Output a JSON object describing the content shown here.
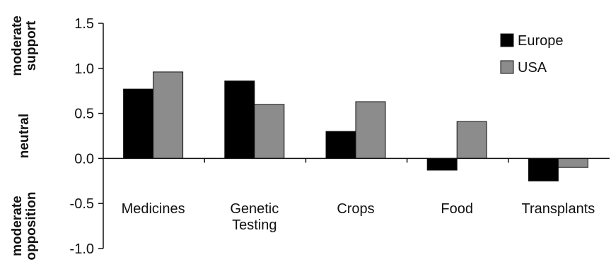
{
  "chart_data": {
    "type": "bar",
    "categories": [
      "Medicines",
      "Genetic\nTesting",
      "Crops",
      "Food",
      "Transplants"
    ],
    "series": [
      {
        "name": "Europe",
        "values": [
          0.77,
          0.86,
          0.3,
          -0.13,
          -0.25
        ],
        "color": "#000000"
      },
      {
        "name": "USA",
        "values": [
          0.96,
          0.6,
          0.63,
          0.41,
          -0.1
        ],
        "color": "#8c8c8c"
      }
    ],
    "ylim": [
      -1.0,
      1.5
    ],
    "yticks": [
      "1.5",
      "1.0",
      "0.5",
      "0.0",
      "-0.5",
      "-1.0"
    ],
    "ytick_values": [
      1.5,
      1.0,
      0.5,
      0.0,
      -0.5,
      -1.0
    ],
    "y_band_labels": [
      {
        "text": [
          "moderate",
          "support"
        ],
        "at": 1.25
      },
      {
        "text": [
          "neutral"
        ],
        "at": 0.25
      },
      {
        "text": [
          "moderate",
          "opposition"
        ],
        "at": -0.75
      }
    ],
    "legend_position": "top-right",
    "grid": false,
    "title": "",
    "xlabel": "",
    "ylabel": ""
  }
}
